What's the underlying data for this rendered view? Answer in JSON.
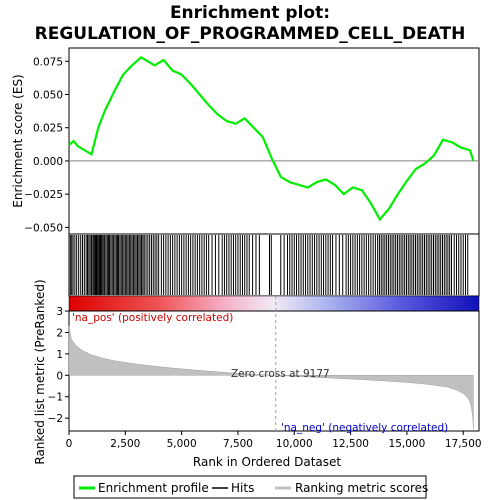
{
  "chart_data": {
    "type": "line",
    "title": "Enrichment plot:",
    "subtitle": "REGULATION_OF_PROGRAMMED_CELL_DEATH",
    "top_panel": {
      "ylabel": "Enrichment score (ES)",
      "ylim": [
        -0.055,
        0.085
      ],
      "yticks": [
        -0.05,
        -0.025,
        0.0,
        0.025,
        0.05,
        0.075
      ],
      "ytick_labels": [
        "−0.050",
        "−0.025",
        "0.000",
        "0.025",
        "0.050",
        "0.075"
      ],
      "series": [
        {
          "name": "Enrichment profile",
          "color": "#00ee00",
          "x": [
            0,
            200,
            400,
            700,
            1000,
            1300,
            1600,
            2000,
            2400,
            2800,
            3200,
            3500,
            3800,
            4200,
            4600,
            5000,
            5400,
            5800,
            6200,
            6600,
            7000,
            7400,
            7800,
            8200,
            8600,
            9000,
            9400,
            9800,
            10200,
            10600,
            11000,
            11400,
            11800,
            12200,
            12600,
            13000,
            13400,
            13800,
            14200,
            14600,
            15000,
            15400,
            15800,
            16200,
            16600,
            17000,
            17400,
            17800,
            17950
          ],
          "y": [
            0.012,
            0.015,
            0.011,
            0.008,
            0.005,
            0.025,
            0.038,
            0.052,
            0.065,
            0.072,
            0.078,
            0.075,
            0.072,
            0.076,
            0.068,
            0.065,
            0.058,
            0.05,
            0.042,
            0.035,
            0.03,
            0.028,
            0.032,
            0.025,
            0.018,
            0.002,
            -0.012,
            -0.016,
            -0.018,
            -0.02,
            -0.016,
            -0.014,
            -0.018,
            -0.025,
            -0.02,
            -0.022,
            -0.032,
            -0.044,
            -0.036,
            -0.025,
            -0.015,
            -0.006,
            -0.002,
            0.004,
            0.016,
            0.014,
            0.01,
            0.008,
            0.0
          ]
        }
      ]
    },
    "hits_panel": {
      "series_name": "Hits",
      "color": "#000000",
      "hit_ranks": [
        60,
        120,
        180,
        260,
        340,
        430,
        520,
        600,
        680,
        760,
        820,
        880,
        940,
        1000,
        1060,
        1110,
        1160,
        1200,
        1240,
        1290,
        1340,
        1380,
        1420,
        1470,
        1520,
        1580,
        1640,
        1700,
        1750,
        1800,
        1860,
        1920,
        1980,
        2040,
        2100,
        2150,
        2200,
        2260,
        2320,
        2380,
        2440,
        2500,
        2560,
        2620,
        2680,
        2740,
        2800,
        2860,
        2920,
        2980,
        3040,
        3100,
        3160,
        3220,
        3280,
        3340,
        3420,
        3500,
        3580,
        3660,
        3740,
        3820,
        3900,
        3980,
        4100,
        4200,
        4300,
        4400,
        4500,
        4600,
        4700,
        4800,
        4900,
        5000,
        5100,
        5200,
        5300,
        5400,
        5500,
        5600,
        5700,
        5800,
        5900,
        6000,
        6100,
        6200,
        6350,
        6500,
        6650,
        6800,
        6900,
        7000,
        7100,
        7200,
        7300,
        7400,
        7500,
        7600,
        7700,
        7800,
        7900,
        8000,
        8150,
        8300,
        8450,
        8900,
        8980,
        9400,
        9550,
        9700,
        9800,
        9900,
        10000,
        10100,
        10200,
        10300,
        10400,
        10500,
        10600,
        10700,
        10800,
        10900,
        11000,
        11100,
        11200,
        11300,
        11400,
        11500,
        11600,
        11700,
        11850,
        12000,
        12150,
        12300,
        12400,
        12500,
        12600,
        12700,
        12800,
        12900,
        13000,
        13100,
        13200,
        13300,
        13400,
        13500,
        13600,
        13700,
        13780,
        13860,
        13940,
        14020,
        14100,
        14180,
        14260,
        14340,
        14420,
        14500,
        14580,
        14660,
        14740,
        14820,
        14900,
        14980,
        15060,
        15140,
        15220,
        15300,
        15380,
        15460,
        15540,
        15620,
        15700,
        15780,
        15860,
        15940,
        16020,
        16100,
        16180,
        16260,
        16340,
        16420,
        16500,
        16580,
        16660,
        16740,
        16820,
        16900,
        16980,
        17100,
        17200,
        17300,
        17400,
        17500,
        17600,
        17700
      ]
    },
    "ranking_panel": {
      "ylabel": "Ranked list metric (PreRanked)",
      "xlabel": "Rank in Ordered Dataset",
      "ylim": [
        -2.6,
        3.0
      ],
      "yticks": [
        -2,
        -1,
        0,
        1,
        2,
        3
      ],
      "ytick_labels": [
        "−2",
        "−1",
        "0",
        "1",
        "2",
        "3"
      ],
      "xlim": [
        0,
        18200
      ],
      "xticks": [
        0,
        2500,
        5000,
        7500,
        10000,
        12500,
        15000,
        17500
      ],
      "xtick_labels": [
        "0",
        "2,500",
        "5,000",
        "7,500",
        "10,000",
        "12,500",
        "15,000",
        "17,500"
      ],
      "series_name": "Ranking metric scores",
      "fill_color": "#c0c0c0",
      "x": [
        0,
        100,
        300,
        600,
        1000,
        1500,
        2000,
        3000,
        4000,
        5000,
        6000,
        7000,
        8000,
        9177,
        10000,
        11000,
        12000,
        13000,
        14000,
        15000,
        16000,
        16800,
        17200,
        17500,
        17700,
        17800,
        17870,
        17920,
        17950
      ],
      "y": [
        2.3,
        1.7,
        1.4,
        1.15,
        0.95,
        0.8,
        0.68,
        0.52,
        0.4,
        0.3,
        0.21,
        0.13,
        0.06,
        0.0,
        -0.05,
        -0.1,
        -0.15,
        -0.2,
        -0.26,
        -0.33,
        -0.43,
        -0.55,
        -0.68,
        -0.85,
        -1.05,
        -1.25,
        -1.55,
        -2.0,
        -2.5
      ],
      "zero_cross_rank": 9177,
      "zero_cross_label": "Zero cross at 9177",
      "pos_label": "'na_pos' (positively correlated)",
      "pos_label_color": "#cc0000",
      "neg_label": "'na_neg' (negatively correlated)",
      "neg_label_color": "#0000cc"
    },
    "legend": {
      "placement": "bottom",
      "items": [
        {
          "label": "Enrichment profile",
          "color": "#00ee00"
        },
        {
          "label": "Hits",
          "color": "#000000"
        },
        {
          "label": "Ranking metric scores",
          "color": "#c0c0c0"
        }
      ]
    }
  }
}
